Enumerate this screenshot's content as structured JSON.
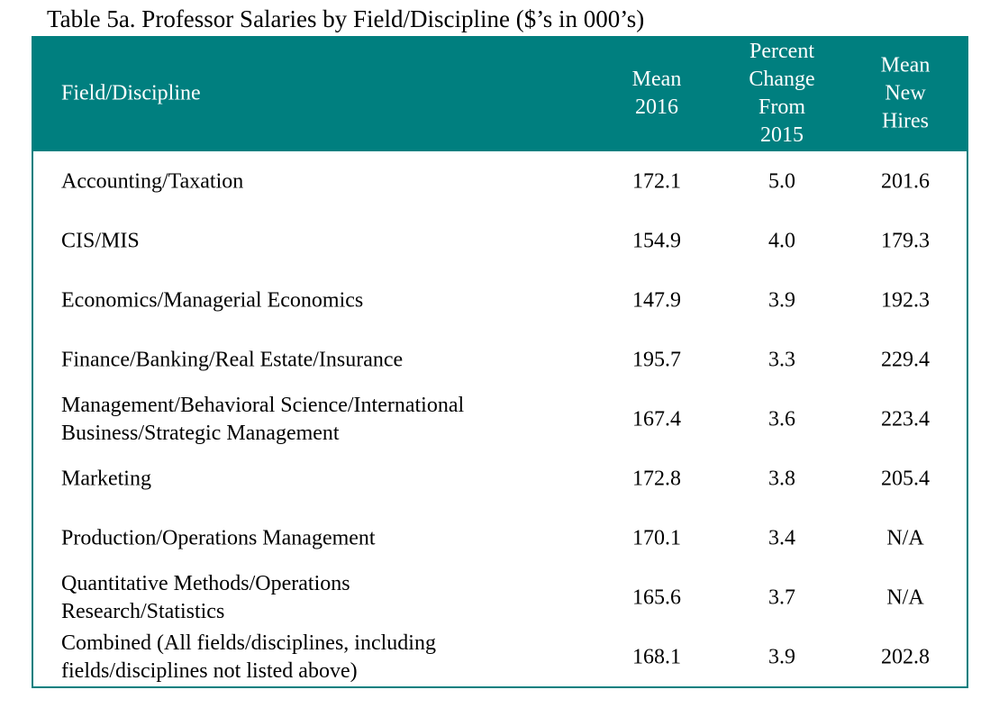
{
  "title": "Table 5a. Professor Salaries by Field/Discipline ($’s in 000’s)",
  "header_color": "#007f7f",
  "columns": [
    "Field/Discipline",
    "Mean 2016",
    "Percent Change From 2015",
    "Mean New Hires"
  ],
  "column_lines": [
    [
      "Field/Discipline"
    ],
    [
      "Mean",
      "2016"
    ],
    [
      "Percent",
      "Change",
      "From",
      "2015"
    ],
    [
      "Mean",
      "New",
      "Hires"
    ]
  ],
  "rows": [
    {
      "field": [
        "Accounting/Taxation"
      ],
      "mean_2016": "172.1",
      "pct_change": "5.0",
      "new_hires": "201.6"
    },
    {
      "field": [
        "CIS/MIS"
      ],
      "mean_2016": "154.9",
      "pct_change": "4.0",
      "new_hires": "179.3"
    },
    {
      "field": [
        "Economics/Managerial Economics"
      ],
      "mean_2016": "147.9",
      "pct_change": "3.9",
      "new_hires": "192.3"
    },
    {
      "field": [
        "Finance/Banking/Real Estate/Insurance"
      ],
      "mean_2016": "195.7",
      "pct_change": "3.3",
      "new_hires": "229.4"
    },
    {
      "field": [
        "Management/Behavioral Science/International",
        "Business/Strategic Management"
      ],
      "mean_2016": "167.4",
      "pct_change": "3.6",
      "new_hires": "223.4"
    },
    {
      "field": [
        "Marketing"
      ],
      "mean_2016": "172.8",
      "pct_change": "3.8",
      "new_hires": "205.4"
    },
    {
      "field": [
        "Production/Operations Management"
      ],
      "mean_2016": "170.1",
      "pct_change": "3.4",
      "new_hires": "N/A"
    },
    {
      "field": [
        "Quantitative Methods/Operations",
        "Research/Statistics"
      ],
      "mean_2016": "165.6",
      "pct_change": "3.7",
      "new_hires": "N/A"
    },
    {
      "field": [
        "Combined (All fields/disciplines, including",
        "fields/disciplines not listed above)"
      ],
      "mean_2016": "168.1",
      "pct_change": "3.9",
      "new_hires": "202.8"
    }
  ]
}
